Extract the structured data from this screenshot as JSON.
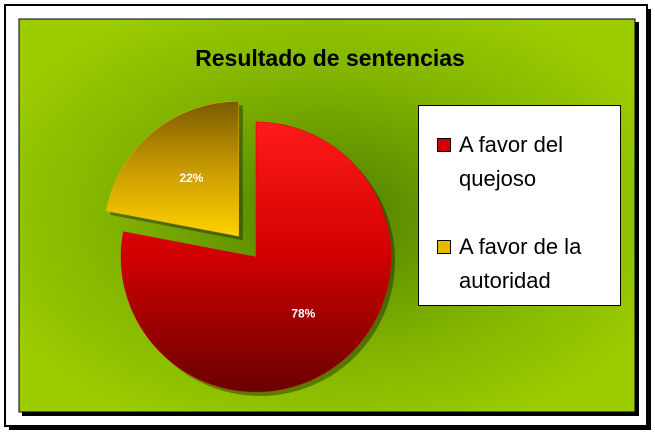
{
  "chart_data": {
    "type": "pie",
    "title": "Resultado de sentencias",
    "series": [
      {
        "name": "A favor del quejoso",
        "color": "#d00000",
        "values": [
          78
        ],
        "value_labels": [
          "78%"
        ]
      },
      {
        "name": "A favor de la autoridad",
        "color": "#e6b800",
        "values": [
          22
        ],
        "value_labels": [
          "22%"
        ]
      }
    ],
    "legend": "right"
  }
}
